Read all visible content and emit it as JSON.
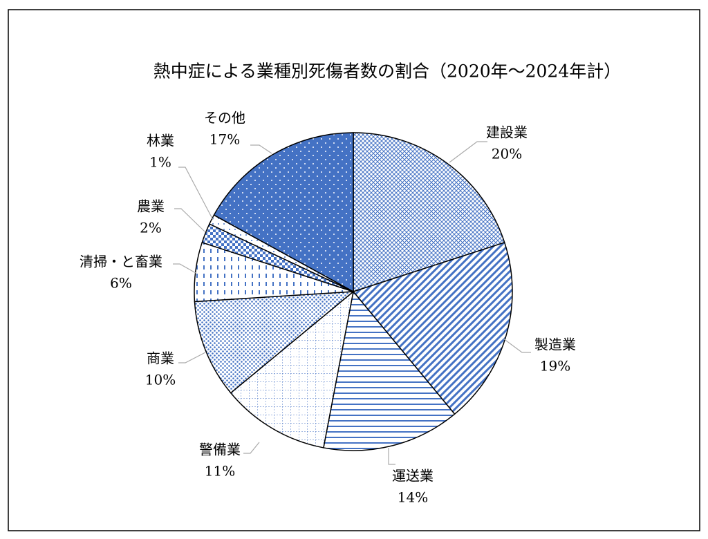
{
  "chart_data": {
    "type": "pie",
    "title": "熱中症による業種別死傷者数の割合（2020年～2024年計）",
    "categories": [
      "建設業",
      "製造業",
      "運送業",
      "警備業",
      "商業",
      "清掃・と畜業",
      "農業",
      "林業",
      "その他"
    ],
    "values": [
      20,
      19,
      14,
      11,
      10,
      6,
      2,
      1,
      17
    ],
    "value_labels": [
      "20%",
      "19%",
      "14%",
      "11%",
      "10%",
      "6%",
      "2%",
      "1%",
      "17%"
    ],
    "color": "#4472c4"
  }
}
